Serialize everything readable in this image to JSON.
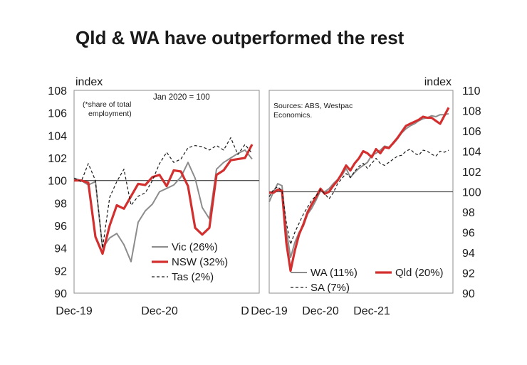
{
  "title": "Qld & WA have outperformed the rest",
  "colors": {
    "red": "#d32f2f",
    "grey": "#8c8c8c",
    "black": "#1a1a1a",
    "frame": "#8c8c8c"
  },
  "chart_data": [
    {
      "type": "line",
      "ylabel": "index",
      "ylim": [
        90,
        108
      ],
      "yticks": [
        90,
        92,
        94,
        96,
        98,
        100,
        102,
        104,
        106,
        108
      ],
      "xtick_labels": [
        "Dec-19",
        "Dec-20",
        "D"
      ],
      "reference_line": 100,
      "annotations": [
        "(*share of total",
        "employment)",
        "Jan 2020 = 100"
      ],
      "series": [
        {
          "name": "Vic (26%)",
          "style": "grey-solid",
          "x": [
            "2019-12",
            "2020-01",
            "2020-02",
            "2020-03",
            "2020-04",
            "2020-05",
            "2020-06",
            "2020-07",
            "2020-08",
            "2020-09",
            "2020-10",
            "2020-11",
            "2020-12",
            "2021-01",
            "2021-02",
            "2021-03",
            "2021-04",
            "2021-05",
            "2021-06",
            "2021-07",
            "2021-08",
            "2021-09",
            "2021-10",
            "2021-11",
            "2021-12",
            "2022-01"
          ],
          "values": [
            100.2,
            100.0,
            99.6,
            99.9,
            94.0,
            94.9,
            95.3,
            94.3,
            92.8,
            96.3,
            97.3,
            97.9,
            99.0,
            99.3,
            99.6,
            100.3,
            101.6,
            100.2,
            97.6,
            96.6,
            101.0,
            101.6,
            102.0,
            102.4,
            102.7,
            101.9
          ]
        },
        {
          "name": "NSW (32%)",
          "style": "red-solid",
          "x": [
            "2019-12",
            "2020-01",
            "2020-02",
            "2020-03",
            "2020-04",
            "2020-05",
            "2020-06",
            "2020-07",
            "2020-08",
            "2020-09",
            "2020-10",
            "2020-11",
            "2020-12",
            "2021-01",
            "2021-02",
            "2021-03",
            "2021-04",
            "2021-05",
            "2021-06",
            "2021-07",
            "2021-08",
            "2021-09",
            "2021-10",
            "2021-11",
            "2021-12",
            "2022-01"
          ],
          "values": [
            100.0,
            100.0,
            99.8,
            95.0,
            93.5,
            96.0,
            97.8,
            97.5,
            98.6,
            99.7,
            99.6,
            100.3,
            100.5,
            99.5,
            100.9,
            100.8,
            99.5,
            95.8,
            95.2,
            95.8,
            100.5,
            100.9,
            101.8,
            101.9,
            102.0,
            103.2
          ]
        },
        {
          "name": "Tas (2%)",
          "style": "black-dashed",
          "x": [
            "2019-12",
            "2020-01",
            "2020-02",
            "2020-03",
            "2020-04",
            "2020-05",
            "2020-06",
            "2020-07",
            "2020-08",
            "2020-09",
            "2020-10",
            "2020-11",
            "2020-12",
            "2021-01",
            "2021-02",
            "2021-03",
            "2021-04",
            "2021-05",
            "2021-06",
            "2021-07",
            "2021-08",
            "2021-09",
            "2021-10",
            "2021-11",
            "2021-12",
            "2022-01"
          ],
          "values": [
            100.2,
            99.9,
            101.5,
            100.0,
            94.0,
            98.5,
            99.9,
            101.0,
            97.8,
            98.6,
            98.9,
            100.0,
            101.5,
            102.5,
            101.6,
            101.9,
            102.9,
            103.1,
            103.0,
            102.7,
            103.1,
            102.7,
            103.8,
            102.3,
            103.2,
            102.4
          ]
        }
      ]
    },
    {
      "type": "line",
      "ylabel": "index",
      "ylim": [
        90,
        110
      ],
      "yticks": [
        90,
        92,
        94,
        96,
        98,
        100,
        102,
        104,
        106,
        108,
        110
      ],
      "xtick_labels": [
        "Dec-19",
        "Dec-20",
        "Dec-21"
      ],
      "reference_line": 100,
      "annotations": [
        "Sources: ABS, Westpac",
        "Economics."
      ],
      "series": [
        {
          "name": "WA (11%)",
          "style": "grey-solid",
          "x": [
            "2019-12",
            "2020-01",
            "2020-02",
            "2020-03",
            "2020-04",
            "2020-05",
            "2020-06",
            "2020-07",
            "2020-08",
            "2020-09",
            "2020-10",
            "2020-11",
            "2020-12",
            "2021-01",
            "2021-02",
            "2021-03",
            "2021-04",
            "2021-05",
            "2021-06",
            "2021-07",
            "2021-08",
            "2021-09",
            "2021-10",
            "2021-11",
            "2021-12",
            "2022-01",
            "2022-02",
            "2022-03",
            "2022-04",
            "2022-05",
            "2022-06",
            "2022-07",
            "2022-08",
            "2022-09",
            "2022-10",
            "2022-11",
            "2022-12",
            "2023-01",
            "2023-02",
            "2023-03",
            "2023-04",
            "2023-05",
            "2023-06"
          ],
          "values": [
            99.0,
            100.0,
            100.8,
            100.6,
            96.3,
            93.5,
            95.0,
            96.0,
            96.6,
            97.8,
            98.4,
            99.2,
            100.1,
            100.0,
            100.3,
            100.8,
            101.2,
            101.6,
            102.3,
            101.4,
            101.9,
            102.3,
            102.6,
            102.9,
            103.6,
            103.8,
            104.1,
            104.5,
            104.4,
            104.7,
            105.2,
            105.8,
            106.2,
            106.5,
            106.7,
            107.0,
            107.2,
            107.3,
            107.5,
            107.4,
            107.6,
            107.6,
            107.7
          ]
        },
        {
          "name": "Qld (20%)",
          "style": "red-solid",
          "x": [
            "2019-12",
            "2020-01",
            "2020-02",
            "2020-03",
            "2020-04",
            "2020-05",
            "2020-06",
            "2020-07",
            "2020-08",
            "2020-09",
            "2020-10",
            "2020-11",
            "2020-12",
            "2021-01",
            "2021-02",
            "2021-03",
            "2021-04",
            "2021-05",
            "2021-06",
            "2021-07",
            "2021-08",
            "2021-09",
            "2021-10",
            "2021-11",
            "2021-12",
            "2022-01",
            "2022-02",
            "2022-03",
            "2022-04",
            "2022-05",
            "2022-06",
            "2022-07",
            "2022-08",
            "2022-09",
            "2022-10",
            "2022-11",
            "2022-12",
            "2023-01",
            "2023-02",
            "2023-03",
            "2023-04",
            "2023-05",
            "2023-06"
          ],
          "values": [
            99.9,
            99.9,
            100.2,
            100.1,
            95.0,
            92.2,
            94.2,
            95.8,
            96.8,
            98.0,
            98.8,
            99.5,
            100.3,
            99.8,
            100.0,
            100.6,
            101.1,
            101.8,
            102.6,
            102.1,
            102.8,
            103.3,
            104.0,
            103.8,
            103.4,
            104.2,
            103.8,
            104.4,
            104.3,
            104.8,
            105.3,
            105.9,
            106.5,
            106.7,
            106.9,
            107.1,
            107.4,
            107.3,
            107.3,
            107.0,
            106.7,
            107.5,
            108.3
          ]
        },
        {
          "name": "SA (7%)",
          "style": "black-dashed",
          "x": [
            "2019-12",
            "2020-01",
            "2020-02",
            "2020-03",
            "2020-04",
            "2020-05",
            "2020-06",
            "2020-07",
            "2020-08",
            "2020-09",
            "2020-10",
            "2020-11",
            "2020-12",
            "2021-01",
            "2021-02",
            "2021-03",
            "2021-04",
            "2021-05",
            "2021-06",
            "2021-07",
            "2021-08",
            "2021-09",
            "2021-10",
            "2021-11",
            "2021-12",
            "2022-01",
            "2022-02",
            "2022-03",
            "2022-04",
            "2022-05",
            "2022-06",
            "2022-07",
            "2022-08",
            "2022-09",
            "2022-10",
            "2022-11",
            "2022-12",
            "2023-01",
            "2023-02",
            "2023-03",
            "2023-04",
            "2023-05",
            "2023-06"
          ],
          "values": [
            99.5,
            100.2,
            100.5,
            100.1,
            97.0,
            94.8,
            96.0,
            96.9,
            97.8,
            98.5,
            99.2,
            99.6,
            100.2,
            99.8,
            99.3,
            99.9,
            100.8,
            101.3,
            101.8,
            101.4,
            102.0,
            102.5,
            102.8,
            102.3,
            102.8,
            103.3,
            102.8,
            102.6,
            102.9,
            103.2,
            103.5,
            103.6,
            104.0,
            104.2,
            103.8,
            103.6,
            104.1,
            104.0,
            103.7,
            103.5,
            104.0,
            103.9,
            104.1
          ]
        }
      ]
    }
  ]
}
